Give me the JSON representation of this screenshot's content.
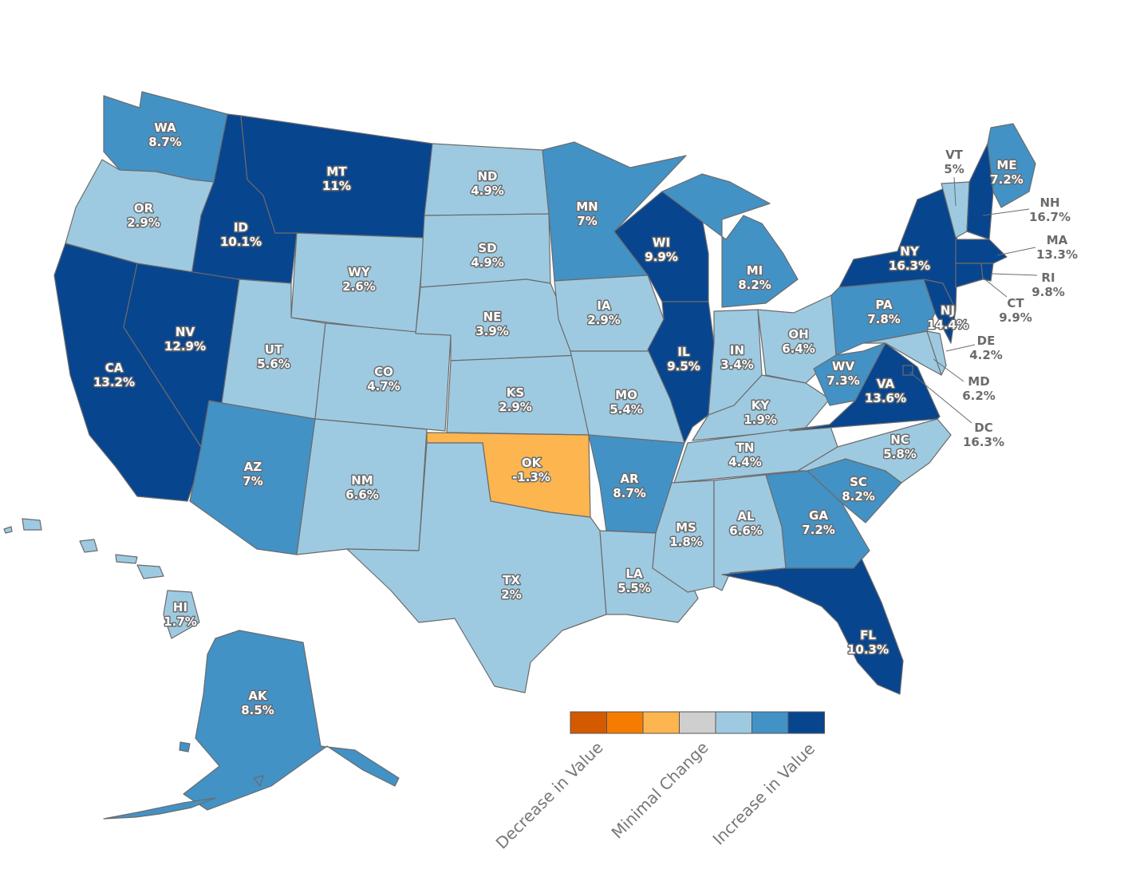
{
  "colors": {
    "decrease_strong": "#d45a00",
    "decrease": "#f57c00",
    "decrease_light": "#fcb54f",
    "minimal": "#cfcfcf",
    "increase_light": "#9ecae1",
    "increase": "#4292c6",
    "increase_strong": "#08458f",
    "outline": "#6b6b6b"
  },
  "legend": {
    "swatches": [
      "decrease_strong",
      "decrease",
      "decrease_light",
      "minimal",
      "increase_light",
      "increase",
      "increase_strong"
    ],
    "labels": {
      "decrease": "Decrease in Value",
      "minimal": "Minimal Change",
      "increase": "Increase in Value"
    }
  },
  "states": [
    {
      "code": "WA",
      "value": "8.7%",
      "bin": "increase"
    },
    {
      "code": "OR",
      "value": "2.9%",
      "bin": "increase_light"
    },
    {
      "code": "CA",
      "value": "13.2%",
      "bin": "increase_strong"
    },
    {
      "code": "ID",
      "value": "10.1%",
      "bin": "increase_strong"
    },
    {
      "code": "NV",
      "value": "12.9%",
      "bin": "increase_strong"
    },
    {
      "code": "MT",
      "value": "11%",
      "bin": "increase_strong"
    },
    {
      "code": "WY",
      "value": "2.6%",
      "bin": "increase_light"
    },
    {
      "code": "UT",
      "value": "5.6%",
      "bin": "increase_light"
    },
    {
      "code": "AZ",
      "value": "7%",
      "bin": "increase"
    },
    {
      "code": "CO",
      "value": "4.7%",
      "bin": "increase_light"
    },
    {
      "code": "NM",
      "value": "6.6%",
      "bin": "increase_light"
    },
    {
      "code": "ND",
      "value": "4.9%",
      "bin": "increase_light"
    },
    {
      "code": "SD",
      "value": "4.9%",
      "bin": "increase_light"
    },
    {
      "code": "NE",
      "value": "3.9%",
      "bin": "increase_light"
    },
    {
      "code": "KS",
      "value": "2.9%",
      "bin": "increase_light"
    },
    {
      "code": "OK",
      "value": "-1.3%",
      "bin": "decrease_light"
    },
    {
      "code": "TX",
      "value": "2%",
      "bin": "increase_light"
    },
    {
      "code": "MN",
      "value": "7%",
      "bin": "increase"
    },
    {
      "code": "IA",
      "value": "2.9%",
      "bin": "increase_light"
    },
    {
      "code": "MO",
      "value": "5.4%",
      "bin": "increase_light"
    },
    {
      "code": "AR",
      "value": "8.7%",
      "bin": "increase"
    },
    {
      "code": "LA",
      "value": "5.5%",
      "bin": "increase_light"
    },
    {
      "code": "WI",
      "value": "9.9%",
      "bin": "increase_strong"
    },
    {
      "code": "IL",
      "value": "9.5%",
      "bin": "increase_strong"
    },
    {
      "code": "MI",
      "value": "8.2%",
      "bin": "increase"
    },
    {
      "code": "IN",
      "value": "3.4%",
      "bin": "increase_light"
    },
    {
      "code": "OH",
      "value": "6.4%",
      "bin": "increase_light"
    },
    {
      "code": "KY",
      "value": "1.9%",
      "bin": "increase_light"
    },
    {
      "code": "TN",
      "value": "4.4%",
      "bin": "increase_light"
    },
    {
      "code": "MS",
      "value": "1.8%",
      "bin": "increase_light"
    },
    {
      "code": "AL",
      "value": "6.6%",
      "bin": "increase_light"
    },
    {
      "code": "GA",
      "value": "7.2%",
      "bin": "increase"
    },
    {
      "code": "FL",
      "value": "10.3%",
      "bin": "increase_strong"
    },
    {
      "code": "SC",
      "value": "8.2%",
      "bin": "increase"
    },
    {
      "code": "NC",
      "value": "5.8%",
      "bin": "increase_light"
    },
    {
      "code": "VA",
      "value": "13.6%",
      "bin": "increase_strong"
    },
    {
      "code": "WV",
      "value": "7.3%",
      "bin": "increase"
    },
    {
      "code": "PA",
      "value": "7.8%",
      "bin": "increase"
    },
    {
      "code": "NY",
      "value": "16.3%",
      "bin": "increase_strong"
    },
    {
      "code": "NJ",
      "value": "14.4%",
      "bin": "increase_strong"
    },
    {
      "code": "DE",
      "value": "4.2%",
      "bin": "increase_light"
    },
    {
      "code": "MD",
      "value": "6.2%",
      "bin": "increase_light"
    },
    {
      "code": "DC",
      "value": "16.3%",
      "bin": "increase_strong"
    },
    {
      "code": "CT",
      "value": "9.9%",
      "bin": "increase_strong"
    },
    {
      "code": "RI",
      "value": "9.8%",
      "bin": "increase_strong"
    },
    {
      "code": "MA",
      "value": "13.3%",
      "bin": "increase_strong"
    },
    {
      "code": "VT",
      "value": "5%",
      "bin": "increase_light"
    },
    {
      "code": "NH",
      "value": "16.7%",
      "bin": "increase_strong"
    },
    {
      "code": "ME",
      "value": "7.2%",
      "bin": "increase"
    },
    {
      "code": "AK",
      "value": "8.5%",
      "bin": "increase"
    },
    {
      "code": "HI",
      "value": "1.7%",
      "bin": "increase_light"
    }
  ]
}
